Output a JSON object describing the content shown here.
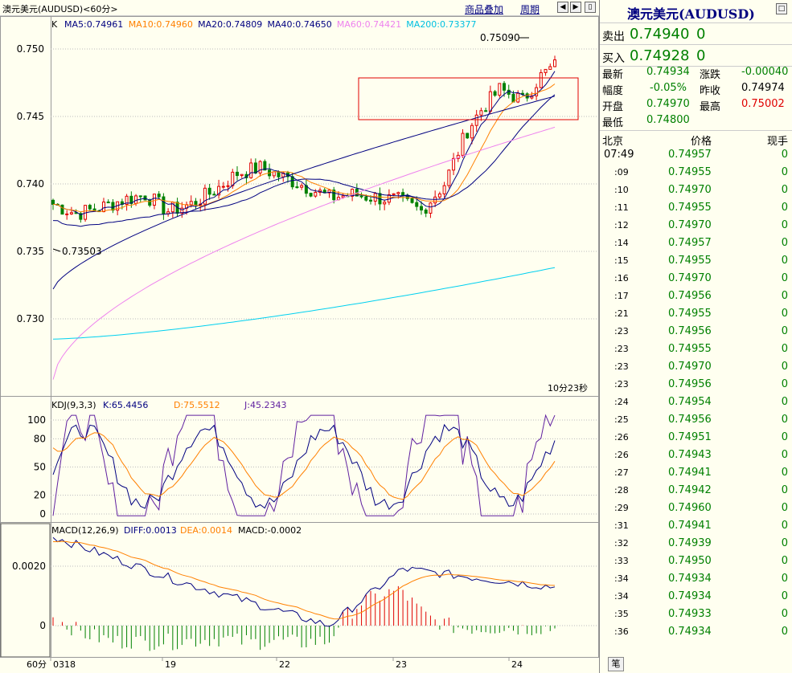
{
  "window": {
    "title": "澳元美元(AUDUSD)<60分>",
    "overlay_link": "商品叠加",
    "period_link": "周期"
  },
  "main_chart": {
    "symbol_letter": "K",
    "ma_labels": [
      {
        "text": "MA5:0.74961",
        "color": "#000080"
      },
      {
        "text": "MA10:0.74960",
        "color": "#ff8000"
      },
      {
        "text": "MA20:0.74809",
        "color": "#000080"
      },
      {
        "text": "MA40:0.74650",
        "color": "#000080"
      },
      {
        "text": "MA60:0.74421",
        "color": "#ee82ee"
      },
      {
        "text": "MA200:0.73377",
        "color": "#00c0e0"
      }
    ],
    "y_ticks": [
      "0.750",
      "0.745",
      "0.740",
      "0.735",
      "0.730"
    ],
    "high_marker": "0.75090",
    "low_marker": "0.73503",
    "countdown": "10分23秒"
  },
  "kdj": {
    "title": "KDJ(9,3,3)",
    "k_label": "K:65.4456",
    "d_label": "D:75.5512",
    "j_label": "J:45.2343",
    "y_ticks": [
      "100",
      "80",
      "50",
      "20",
      "0"
    ]
  },
  "macd": {
    "title": "MACD(12,26,9)",
    "diff_label": "DIFF:0.0013",
    "dea_label": "DEA:0.0014",
    "macd_label": "MACD:-0.0002",
    "y_ticks": [
      "0.0020",
      "0"
    ]
  },
  "x_axis": {
    "period": "60分",
    "labels": [
      "0318",
      "19",
      "22",
      "23",
      "24"
    ]
  },
  "quote": {
    "title": "澳元美元(AUDUSD)",
    "sell_label": "卖出",
    "sell_price": "0.74940",
    "sell_vol": "0",
    "buy_label": "买入",
    "buy_price": "0.74928",
    "buy_vol": "0",
    "stats": {
      "latest_label": "最新",
      "latest": "0.74934",
      "change_label": "涨跌",
      "change": "-0.00040",
      "pct_label": "幅度",
      "pct": "-0.05%",
      "prev_label": "昨收",
      "prev": "0.74974",
      "open_label": "开盘",
      "open": "0.74970",
      "high_label": "最高",
      "high": "0.75002",
      "low_label": "最低",
      "low": "0.74800"
    },
    "trade_header": {
      "loc": "北京",
      "price": "价格",
      "vol": "现手"
    },
    "trades": [
      {
        "t": "07:49",
        "p": "0.74957",
        "v": "0"
      },
      {
        "t": ":09",
        "p": "0.74955",
        "v": "0"
      },
      {
        "t": ":10",
        "p": "0.74970",
        "v": "0"
      },
      {
        "t": ":11",
        "p": "0.74955",
        "v": "0"
      },
      {
        "t": ":12",
        "p": "0.74970",
        "v": "0"
      },
      {
        "t": ":14",
        "p": "0.74957",
        "v": "0"
      },
      {
        "t": ":15",
        "p": "0.74955",
        "v": "0"
      },
      {
        "t": ":16",
        "p": "0.74970",
        "v": "0"
      },
      {
        "t": ":17",
        "p": "0.74956",
        "v": "0"
      },
      {
        "t": ":21",
        "p": "0.74955",
        "v": "0"
      },
      {
        "t": ":23",
        "p": "0.74956",
        "v": "0"
      },
      {
        "t": ":23",
        "p": "0.74955",
        "v": "0"
      },
      {
        "t": ":23",
        "p": "0.74970",
        "v": "0"
      },
      {
        "t": ":23",
        "p": "0.74956",
        "v": "0"
      },
      {
        "t": ":24",
        "p": "0.74954",
        "v": "0"
      },
      {
        "t": ":25",
        "p": "0.74956",
        "v": "0"
      },
      {
        "t": ":26",
        "p": "0.74951",
        "v": "0"
      },
      {
        "t": ":26",
        "p": "0.74943",
        "v": "0"
      },
      {
        "t": ":27",
        "p": "0.74941",
        "v": "0"
      },
      {
        "t": ":28",
        "p": "0.74942",
        "v": "0"
      },
      {
        "t": ":29",
        "p": "0.74960",
        "v": "0"
      },
      {
        "t": ":31",
        "p": "0.74941",
        "v": "0"
      },
      {
        "t": ":32",
        "p": "0.74939",
        "v": "0"
      },
      {
        "t": ":33",
        "p": "0.74950",
        "v": "0"
      },
      {
        "t": ":34",
        "p": "0.74934",
        "v": "0"
      },
      {
        "t": ":34",
        "p": "0.74934",
        "v": "0"
      },
      {
        "t": ":35",
        "p": "0.74933",
        "v": "0"
      },
      {
        "t": ":36",
        "p": "0.74934",
        "v": "0"
      }
    ],
    "bottom_button": "笔"
  },
  "colors": {
    "up": "#e00000",
    "down": "#008000",
    "ma5": "#000080",
    "ma10": "#ff8000",
    "ma20": "#000080",
    "ma40": "#000080",
    "ma60": "#ee82ee",
    "ma200": "#00d0f0",
    "kdj_k": "#000080",
    "kdj_d": "#ff8000",
    "kdj_j": "#6020a0"
  }
}
